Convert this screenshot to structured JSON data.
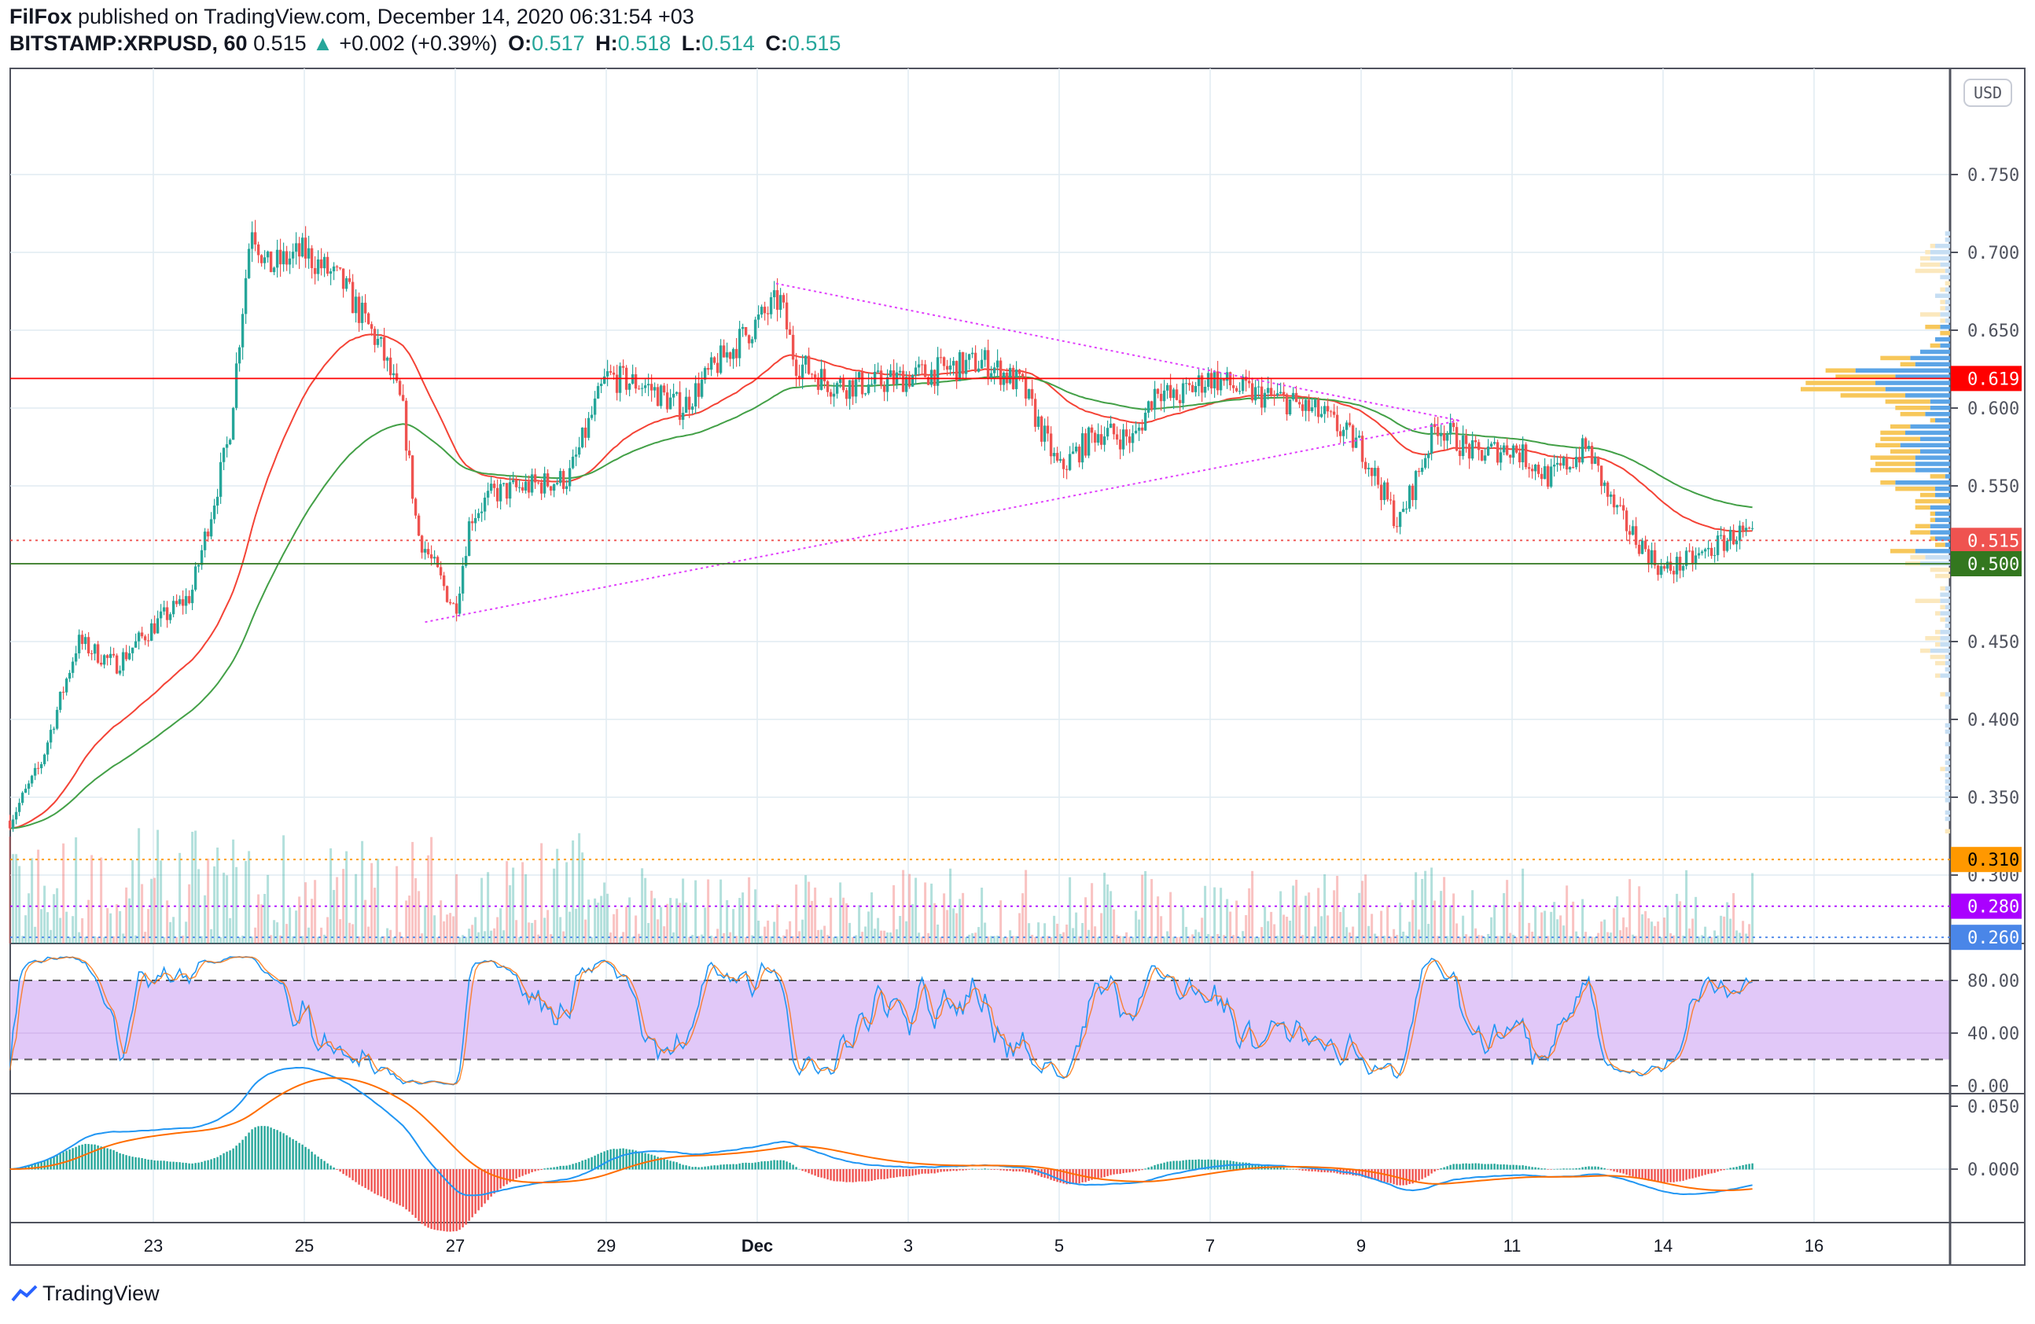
{
  "header": {
    "author": "FilFox",
    "published": "published on TradingView.com, December 14, 2020 06:31:54 +03",
    "symbol": "BITSTAMP:XRPUSD, 60",
    "last": "0.515",
    "change": "+0.002 (+0.39%)",
    "o_label": "O:",
    "o": "0.517",
    "h_label": "H:",
    "h": "0.518",
    "l_label": "L:",
    "l": "0.514",
    "c_label": "C:",
    "c": "0.515"
  },
  "currency_button": "USD",
  "footer": {
    "brand": "TradingView"
  },
  "colors": {
    "up": "#26a69a",
    "down": "#ef5350",
    "ema_fast": "#f44336",
    "ema_slow": "#43a047",
    "trend": "#e040fb",
    "stoch_band": "#e1c8f8"
  },
  "chart_data": {
    "type": "candlestick",
    "title": "BITSTAMP:XRPUSD, 60",
    "time_unit": "days since Nov 21 2020",
    "x_ticks": [
      {
        "t": 2,
        "label": "23"
      },
      {
        "t": 4,
        "label": "25"
      },
      {
        "t": 6,
        "label": "27"
      },
      {
        "t": 8,
        "label": "29"
      },
      {
        "t": 10,
        "label": "Dec"
      },
      {
        "t": 12,
        "label": "3"
      },
      {
        "t": 14,
        "label": "5"
      },
      {
        "t": 16,
        "label": "7"
      },
      {
        "t": 18,
        "label": "9"
      },
      {
        "t": 20,
        "label": "11"
      },
      {
        "t": 22,
        "label": "14"
      },
      {
        "t": 24,
        "label": "16"
      }
    ],
    "price_ticks": [
      "0.750",
      "0.700",
      "0.650",
      "0.600",
      "0.550",
      "0.450",
      "0.400",
      "0.350",
      "0.300"
    ],
    "price_range": [
      0.255,
      0.79
    ],
    "price_keypoints": [
      [
        0.1,
        0.335
      ],
      [
        0.5,
        0.37
      ],
      [
        1.0,
        0.45
      ],
      [
        1.5,
        0.435
      ],
      [
        2.0,
        0.46
      ],
      [
        2.5,
        0.48
      ],
      [
        3.0,
        0.58
      ],
      [
        3.3,
        0.72
      ],
      [
        3.5,
        0.69
      ],
      [
        4.0,
        0.7
      ],
      [
        4.5,
        0.68
      ],
      [
        5.0,
        0.64
      ],
      [
        5.3,
        0.6
      ],
      [
        5.5,
        0.52
      ],
      [
        6.0,
        0.47
      ],
      [
        6.2,
        0.53
      ],
      [
        6.5,
        0.545
      ],
      [
        7.0,
        0.55
      ],
      [
        7.5,
        0.555
      ],
      [
        8.0,
        0.62
      ],
      [
        8.5,
        0.615
      ],
      [
        9.0,
        0.6
      ],
      [
        9.5,
        0.63
      ],
      [
        10.0,
        0.655
      ],
      [
        10.3,
        0.67
      ],
      [
        10.5,
        0.63
      ],
      [
        11.0,
        0.615
      ],
      [
        11.5,
        0.615
      ],
      [
        12.0,
        0.62
      ],
      [
        12.5,
        0.625
      ],
      [
        13.0,
        0.63
      ],
      [
        13.5,
        0.615
      ],
      [
        14.0,
        0.56
      ],
      [
        14.5,
        0.585
      ],
      [
        15.0,
        0.58
      ],
      [
        15.3,
        0.615
      ],
      [
        15.5,
        0.605
      ],
      [
        16.0,
        0.62
      ],
      [
        16.5,
        0.61
      ],
      [
        17.0,
        0.605
      ],
      [
        17.5,
        0.595
      ],
      [
        18.0,
        0.575
      ],
      [
        18.5,
        0.525
      ],
      [
        19.0,
        0.59
      ],
      [
        19.5,
        0.57
      ],
      [
        20.0,
        0.575
      ],
      [
        20.5,
        0.555
      ],
      [
        21.0,
        0.575
      ],
      [
        21.3,
        0.54
      ],
      [
        21.5,
        0.525
      ],
      [
        22.0,
        0.495
      ],
      [
        22.5,
        0.505
      ],
      [
        23.0,
        0.52
      ],
      [
        23.2,
        0.515
      ]
    ],
    "price_levels": [
      {
        "price": 0.619,
        "label": "0.619",
        "color": "#ff0000",
        "style": "solid",
        "text": "#ffffff"
      },
      {
        "price": 0.515,
        "label": "0.515",
        "color": "#ef5350",
        "style": "dotted",
        "text": "#ffffff"
      },
      {
        "price": 0.5,
        "label": "0.500",
        "color": "#33771f",
        "style": "solid",
        "text": "#ffffff"
      },
      {
        "price": 0.31,
        "label": "0.310",
        "color": "#ff9800",
        "style": "dotted",
        "text": "#000000"
      },
      {
        "price": 0.28,
        "label": "0.280",
        "color": "#aa00ff",
        "style": "dotted",
        "text": "#ffffff"
      },
      {
        "price": 0.26,
        "label": "0.260",
        "color": "#4a86e8",
        "style": "dotted",
        "text": "#ffffff"
      }
    ],
    "trendlines": [
      {
        "from": [
          10.25,
          0.68
        ],
        "to": [
          19.3,
          0.592
        ]
      },
      {
        "from": [
          5.6,
          0.4625
        ],
        "to": [
          19.3,
          0.592
        ]
      }
    ],
    "stoch": {
      "ticks": [
        "80.00",
        "40.00",
        "0.00"
      ],
      "upper": 80,
      "lower": 20
    },
    "macd": {
      "ticks": [
        "0.050",
        "0.000"
      ]
    }
  }
}
